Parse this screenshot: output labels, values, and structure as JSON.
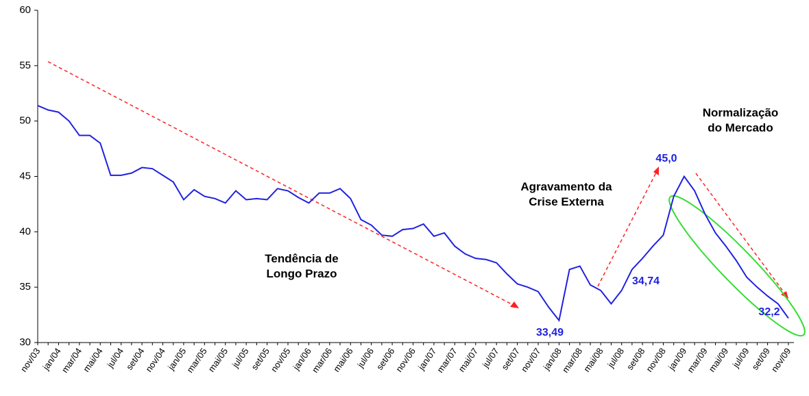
{
  "chart_data": {
    "type": "line",
    "categories": [
      "nov/03",
      null,
      "jan/04",
      null,
      "mar/04",
      null,
      "mai/04",
      null,
      "jul/04",
      null,
      "set/04",
      null,
      "nov/04",
      null,
      "jan/05",
      null,
      "mar/05",
      null,
      "mai/05",
      null,
      "jul/05",
      null,
      "set/05",
      null,
      "nov/05",
      null,
      "jan/06",
      null,
      "mar/06",
      null,
      "mai/06",
      null,
      "jul/06",
      null,
      "set/06",
      null,
      "nov/06",
      null,
      "jan/07",
      null,
      "mar/07",
      null,
      "mai/07",
      null,
      "jul/07",
      null,
      "set/07",
      null,
      "nov/07",
      null,
      "jan/08",
      null,
      "mar/08",
      null,
      "mai/08",
      null,
      "jul/08",
      null,
      "set/08",
      null,
      "nov/08",
      null,
      "jan/09",
      null,
      "mar/09",
      null,
      "mai/09",
      null,
      "jul/09",
      null,
      "set/09",
      null,
      "nov/09"
    ],
    "series": [
      {
        "color": "#2020e0",
        "values": [
          51.4,
          51.0,
          50.8,
          50.0,
          48.7,
          48.7,
          48.0,
          45.1,
          45.1,
          45.3,
          45.8,
          45.7,
          45.1,
          44.5,
          42.9,
          43.8,
          43.2,
          43.0,
          42.6,
          43.7,
          42.9,
          43.0,
          42.9,
          43.9,
          43.7,
          43.1,
          42.6,
          43.5,
          43.5,
          43.9,
          43.0,
          41.1,
          40.6,
          39.7,
          39.6,
          40.2,
          40.3,
          40.7,
          39.6,
          39.9,
          38.7,
          38.0,
          37.6,
          37.5,
          37.2,
          36.2,
          35.3,
          35.0,
          34.6,
          33.2,
          32.0,
          36.6,
          36.9,
          35.2,
          34.7,
          33.5,
          34.7,
          36.6,
          37.6,
          38.7,
          39.7,
          43.2,
          45.0,
          43.7,
          41.6,
          39.9,
          38.7,
          37.4,
          35.9,
          35.0,
          34.2,
          33.5,
          32.2
        ]
      }
    ],
    "ylim": [
      30,
      60
    ],
    "yticks": [
      30,
      35,
      40,
      45,
      50,
      55,
      60
    ],
    "annotations": [
      {
        "lines": [
          "Tendência de",
          "Longo Prazo"
        ]
      },
      {
        "lines": [
          "Agravamento da",
          "Crise Externa"
        ]
      },
      {
        "lines": [
          "Normalização",
          "do Mercado"
        ]
      },
      {
        "lines": [
          "33,49"
        ]
      },
      {
        "lines": [
          "34,74"
        ]
      },
      {
        "lines": [
          "45,0"
        ]
      },
      {
        "lines": [
          "32,2"
        ]
      }
    ]
  }
}
